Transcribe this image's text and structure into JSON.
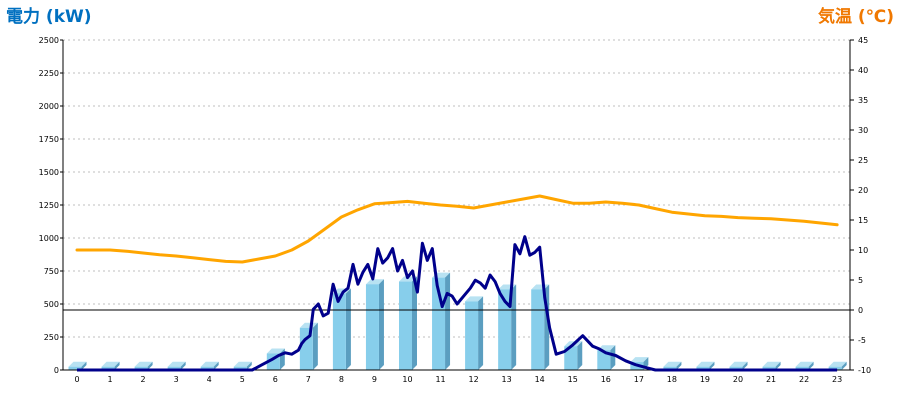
{
  "chart_data": {
    "type": "bar+line",
    "y_left_label": "電力 (kW)",
    "y_right_label": "気温 (℃)",
    "categories": [
      "0",
      "1",
      "2",
      "3",
      "4",
      "5",
      "6",
      "7",
      "8",
      "9",
      "10",
      "11",
      "12",
      "13",
      "14",
      "15",
      "16",
      "17",
      "18",
      "19",
      "20",
      "21",
      "22",
      "23"
    ],
    "y_left_ticks": [
      "0",
      "250",
      "500",
      "750",
      "1000",
      "1250",
      "1500",
      "1750",
      "2000",
      "2250",
      "2500"
    ],
    "y_right_ticks": [
      "-10",
      "-5",
      "0",
      "5",
      "10",
      "15",
      "20",
      "25",
      "30",
      "35",
      "40",
      "45"
    ],
    "y_left_range": [
      0,
      2500
    ],
    "y_right_range": [
      -10,
      45
    ],
    "grid": true,
    "bar_values": [
      25,
      25,
      25,
      25,
      25,
      25,
      125,
      320,
      580,
      650,
      670,
      700,
      520,
      610,
      610,
      180,
      150,
      60,
      25,
      25,
      25,
      25,
      25,
      25
    ],
    "power_line": {
      "x": [
        0,
        0.5,
        1,
        1.5,
        2,
        2.5,
        3,
        3.5,
        4,
        4.5,
        5,
        5.3,
        5.6,
        5.9,
        6.1,
        6.3,
        6.5,
        6.7,
        6.8,
        6.9,
        7.05,
        7.15,
        7.3,
        7.45,
        7.6,
        7.75,
        7.9,
        8.05,
        8.2,
        8.35,
        8.5,
        8.65,
        8.8,
        8.95,
        9.1,
        9.25,
        9.4,
        9.55,
        9.7,
        9.85,
        10.0,
        10.15,
        10.3,
        10.45,
        10.6,
        10.75,
        10.9,
        11.05,
        11.2,
        11.35,
        11.5,
        11.7,
        11.9,
        12.05,
        12.2,
        12.35,
        12.5,
        12.65,
        12.8,
        12.95,
        13.1,
        13.25,
        13.4,
        13.55,
        13.7,
        13.85,
        14.0,
        14.15,
        14.3,
        14.5,
        14.75,
        15.0,
        15.3,
        15.6,
        15.8,
        16.0,
        16.3,
        16.6,
        16.9,
        17.2,
        17.5,
        18,
        19,
        20,
        21,
        22,
        23
      ],
      "values": [
        0,
        0,
        0,
        0,
        0,
        0,
        0,
        0,
        0,
        0,
        0,
        0,
        40,
        80,
        110,
        130,
        120,
        150,
        200,
        230,
        260,
        460,
        500,
        410,
        430,
        650,
        520,
        590,
        620,
        800,
        650,
        740,
        800,
        690,
        920,
        810,
        850,
        920,
        750,
        830,
        700,
        750,
        590,
        960,
        830,
        920,
        640,
        480,
        580,
        560,
        500,
        560,
        620,
        680,
        660,
        620,
        720,
        670,
        580,
        520,
        480,
        950,
        880,
        1010,
        870,
        890,
        930,
        550,
        320,
        120,
        140,
        190,
        260,
        180,
        160,
        130,
        110,
        70,
        40,
        20,
        0,
        0,
        0,
        0,
        0,
        0,
        0
      ]
    },
    "temperature_line": {
      "x": [
        0,
        0.5,
        1,
        1.5,
        2,
        2.5,
        3,
        3.5,
        4,
        4.5,
        5,
        5.5,
        6,
        6.5,
        7,
        7.5,
        8,
        8.5,
        9,
        9.5,
        10,
        10.5,
        11,
        11.5,
        12,
        12.5,
        13,
        13.5,
        14,
        14.5,
        15,
        15.5,
        16,
        16.5,
        17,
        17.5,
        18,
        18.5,
        19,
        19.5,
        20,
        20.5,
        21,
        21.5,
        22,
        22.5,
        23
      ],
      "values": [
        10,
        10,
        10,
        9.8,
        9.5,
        9.2,
        9,
        8.7,
        8.4,
        8.1,
        8,
        8.5,
        9,
        10,
        11.5,
        13.5,
        15.5,
        16.7,
        17.7,
        17.9,
        18.1,
        17.8,
        17.5,
        17.3,
        17,
        17.5,
        18,
        18.5,
        19,
        18.4,
        17.8,
        17.8,
        18,
        17.8,
        17.5,
        16.9,
        16.3,
        16,
        15.7,
        15.6,
        15.4,
        15.3,
        15.2,
        15,
        14.8,
        14.5,
        14.2
      ]
    },
    "colors": {
      "bar_face": "#87CEEB",
      "bar_side": "#5B9EC0",
      "bar_top": "#B8E2F2",
      "power_line": "#00008B",
      "temperature_line": "#FFA500",
      "left_title": "#0070C0",
      "right_title": "#F07800",
      "grid": "#BFBFBF"
    }
  }
}
